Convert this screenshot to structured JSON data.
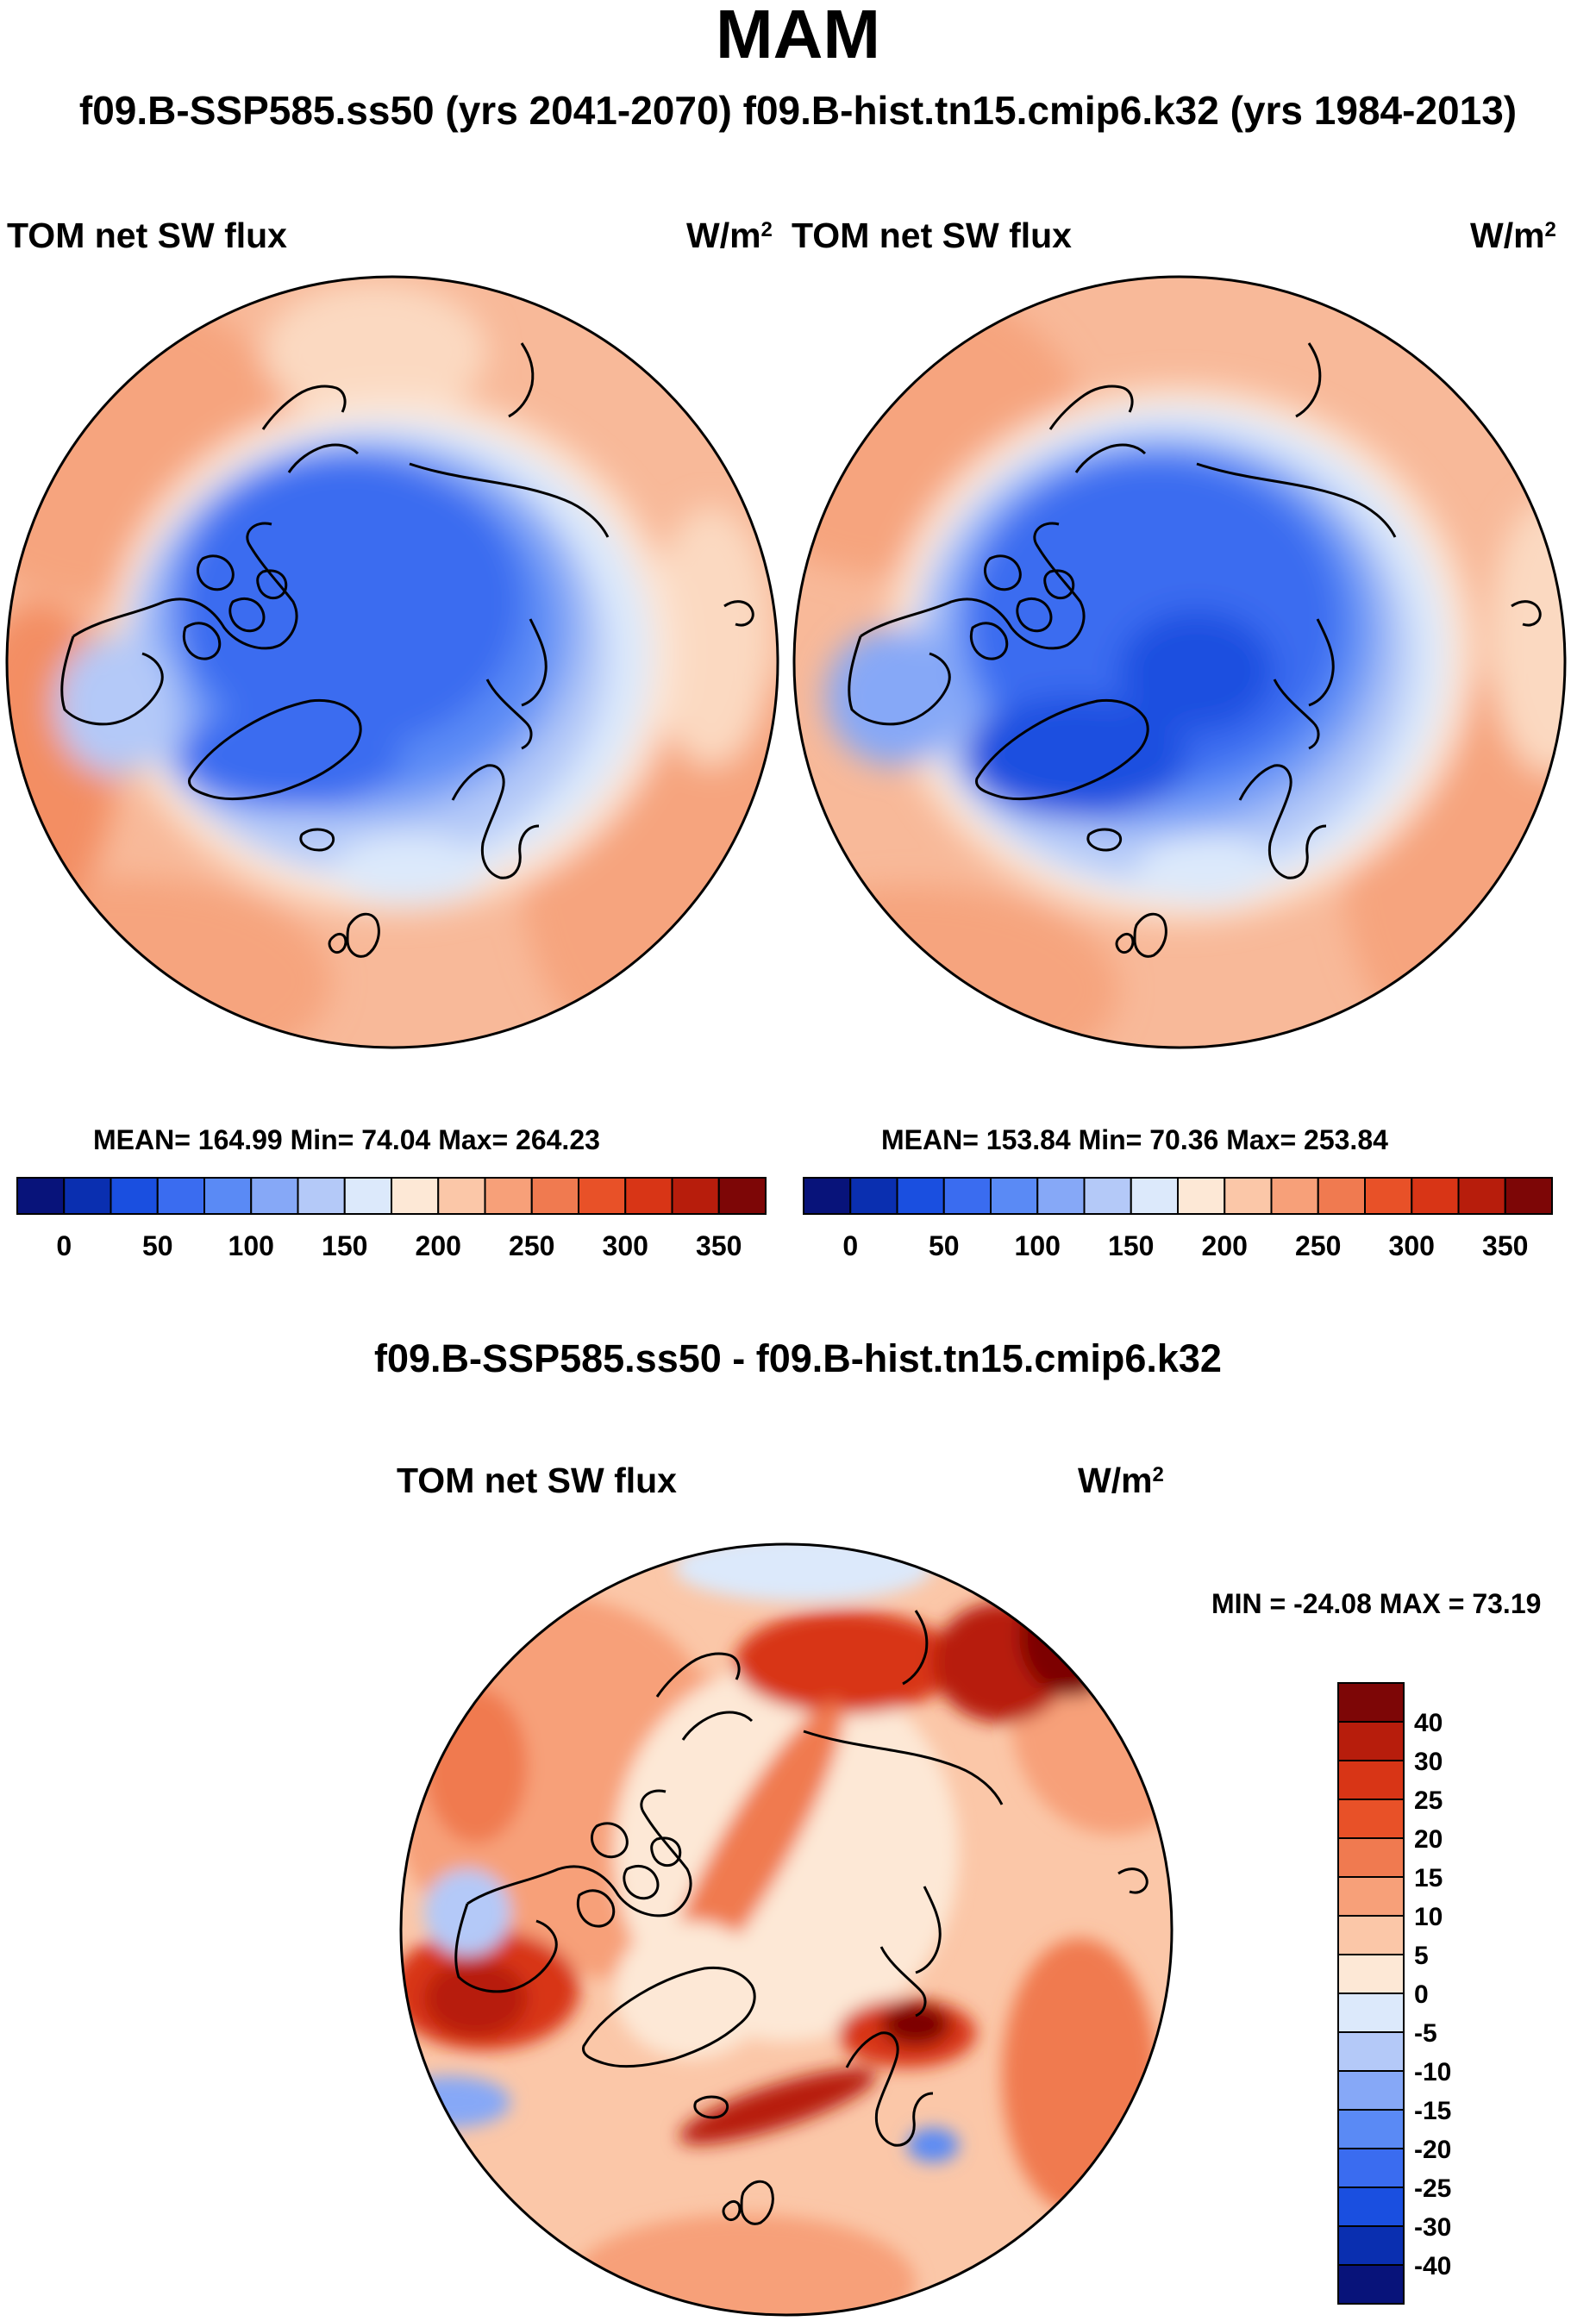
{
  "title": "MAM",
  "header": "f09.B-SSP585.ss50 (yrs 2041-2070)  f09.B-hist.tn15.cmip6.k32 (yrs 1984-2013)",
  "panels": [
    {
      "label": "TOM net SW flux",
      "unit_base": "W/m",
      "unit_exp": "2",
      "stats": "MEAN= 164.99  Min=  74.04  Max= 264.23"
    },
    {
      "label": "TOM net SW flux",
      "unit_base": "W/m",
      "unit_exp": "2",
      "stats": "MEAN= 153.84  Min=  70.36  Max= 253.84"
    }
  ],
  "diff": {
    "title": "f09.B-SSP585.ss50 - f09.B-hist.tn15.cmip6.k32",
    "label": "TOM net SW flux",
    "unit_base": "W/m",
    "unit_exp": "2",
    "stats": "MIN = -24.08 MAX =  73.19"
  },
  "colorbar_top": {
    "colors": [
      "#08137a",
      "#0a2fb0",
      "#1a4fe0",
      "#3a6cf0",
      "#5a8af5",
      "#86a8f7",
      "#b4c9f8",
      "#dce9fb",
      "#fde8d6",
      "#fbc7a8",
      "#f7a079",
      "#f07a50",
      "#e85128",
      "#d83516",
      "#b71d0c",
      "#7d0606"
    ],
    "ticks": [
      "0",
      "50",
      "100",
      "150",
      "200",
      "250",
      "300",
      "350"
    ]
  },
  "colorbar_diff": {
    "colors": [
      "#7d0606",
      "#b71d0c",
      "#d83516",
      "#e85128",
      "#f07a50",
      "#f7a079",
      "#fbc7a8",
      "#fde8d6",
      "#dce9fb",
      "#b4c9f8",
      "#86a8f7",
      "#5a8af5",
      "#3a6cf0",
      "#1a4fe0",
      "#0a2fb0",
      "#08137a"
    ],
    "ticks": [
      "40",
      "30",
      "25",
      "20",
      "15",
      "10",
      "5",
      "0",
      "-5",
      "-10",
      "-15",
      "-20",
      "-25",
      "-30",
      "-40"
    ]
  }
}
